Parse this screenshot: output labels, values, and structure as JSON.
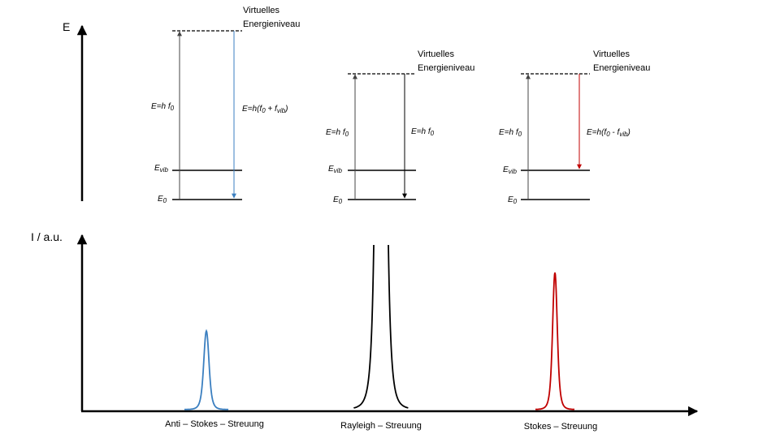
{
  "energy_axis_label": "E",
  "intensity_axis_label": "I / a.u.",
  "panels": [
    {
      "virtual_level": [
        "Virtuelles",
        "Energieniveau"
      ],
      "up_label": [
        "E=h f",
        "0"
      ],
      "down_label": [
        "E=h(f",
        "0",
        " + f",
        "vib",
        ")"
      ],
      "vib_level": [
        "E",
        "vib"
      ],
      "ground_level": [
        "E",
        "0"
      ],
      "down_color": "#3b7fc0"
    },
    {
      "virtual_level": [
        "Virtuelles",
        "Energieniveau"
      ],
      "up_label": [
        "E=h f",
        "0"
      ],
      "down_label": [
        "E=h f",
        "0"
      ],
      "vib_level": [
        "E",
        "vib"
      ],
      "ground_level": [
        "E",
        "0"
      ],
      "down_color": "#000000"
    },
    {
      "virtual_level": [
        "Virtuelles",
        "Energieniveau"
      ],
      "up_label": [
        "E=h f",
        "0"
      ],
      "down_label": [
        "E=h(f",
        "0",
        " - f",
        "vib",
        ")"
      ],
      "vib_level": [
        "E",
        "vib"
      ],
      "ground_level": [
        "E",
        "0"
      ],
      "down_color": "#c00000"
    }
  ],
  "peaks": [
    {
      "label": "Anti – Stokes – Streuung",
      "color": "#3b7fc0"
    },
    {
      "label": "Rayleigh – Streuung",
      "color": "#000000"
    },
    {
      "label": "Stokes – Streuung",
      "color": "#c00000"
    }
  ]
}
